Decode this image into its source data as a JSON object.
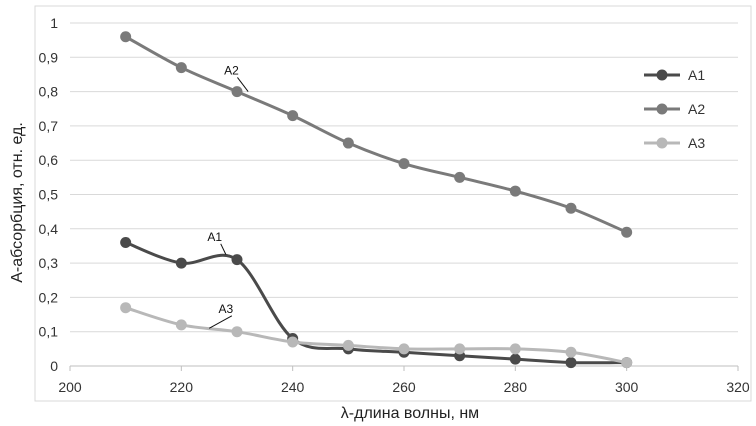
{
  "chart_data": {
    "type": "line",
    "title": "",
    "xlabel": "λ-длина волны, нм",
    "ylabel": "А-абсорбция, отн. ед.",
    "xlim": [
      200,
      320
    ],
    "ylim": [
      0,
      1
    ],
    "x_ticks": [
      200,
      220,
      240,
      260,
      280,
      300,
      320
    ],
    "y_ticks": [
      0,
      0.1,
      0.2,
      0.3,
      0.4,
      0.5,
      0.6,
      0.7,
      0.8,
      0.9,
      1
    ],
    "x_tick_labels": [
      "200",
      "220",
      "240",
      "260",
      "280",
      "300",
      "320"
    ],
    "y_tick_labels": [
      "0",
      "0,1",
      "0,2",
      "0,3",
      "0,4",
      "0,5",
      "0,6",
      "0,7",
      "0,8",
      "0,9",
      "1"
    ],
    "grid": {
      "horizontal": true,
      "vertical": false
    },
    "legend": {
      "placement": "right"
    },
    "series": [
      {
        "name": "А1",
        "color": "#4a4a4a",
        "x": [
          210,
          220,
          230,
          240,
          250,
          260,
          270,
          280,
          290,
          300
        ],
        "y": [
          0.36,
          0.3,
          0.31,
          0.08,
          0.05,
          0.04,
          0.03,
          0.02,
          0.01,
          0.01
        ]
      },
      {
        "name": "А2",
        "color": "#7a7a7a",
        "x": [
          210,
          220,
          230,
          240,
          250,
          260,
          270,
          280,
          290,
          300
        ],
        "y": [
          0.96,
          0.87,
          0.8,
          0.73,
          0.65,
          0.59,
          0.55,
          0.51,
          0.46,
          0.39
        ]
      },
      {
        "name": "А3",
        "color": "#b8b8b8",
        "x": [
          210,
          220,
          230,
          240,
          250,
          260,
          270,
          280,
          290,
          300
        ],
        "y": [
          0.17,
          0.12,
          0.1,
          0.07,
          0.06,
          0.05,
          0.05,
          0.05,
          0.04,
          0.01
        ]
      }
    ],
    "annotations": [
      {
        "text": "А2",
        "x": 229,
        "y": 0.85
      },
      {
        "text": "А1",
        "x": 226,
        "y": 0.365
      },
      {
        "text": "А3",
        "x": 228,
        "y": 0.155
      }
    ]
  }
}
